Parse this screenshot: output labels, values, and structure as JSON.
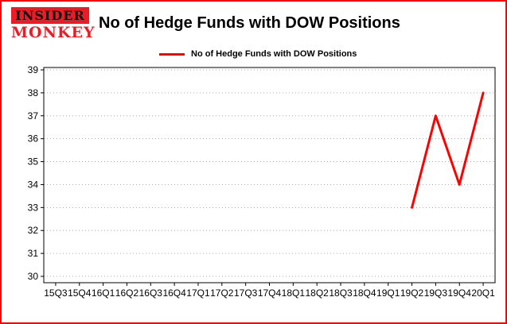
{
  "logo": {
    "line1": "INSIDER",
    "line2": "MONKEY"
  },
  "header": {
    "title": "No of Hedge Funds with DOW Positions"
  },
  "legend": {
    "label": "No of Hedge Funds with DOW Positions",
    "color": "#ff0000"
  },
  "chart_data": {
    "type": "line",
    "title": "No of Hedge Funds with DOW Positions",
    "categories": [
      "15Q3",
      "15Q4",
      "16Q1",
      "16Q2",
      "16Q3",
      "16Q4",
      "17Q1",
      "17Q2",
      "17Q3",
      "17Q4",
      "18Q1",
      "18Q2",
      "18Q3",
      "18Q4",
      "19Q1",
      "19Q2",
      "19Q3",
      "19Q4",
      "20Q1"
    ],
    "series": [
      {
        "name": "No of Hedge Funds with DOW Positions",
        "color": "#ff0000",
        "values": [
          null,
          null,
          null,
          null,
          null,
          null,
          null,
          null,
          null,
          null,
          null,
          null,
          null,
          null,
          null,
          33,
          37,
          34,
          38
        ]
      }
    ],
    "xlabel": "",
    "ylabel": "",
    "ylim": [
      30,
      39
    ],
    "yticks": [
      30,
      31,
      32,
      33,
      34,
      35,
      36,
      37,
      38,
      39
    ],
    "grid": true,
    "grid_style": "dotted-horizontal",
    "legend_position": "top"
  }
}
